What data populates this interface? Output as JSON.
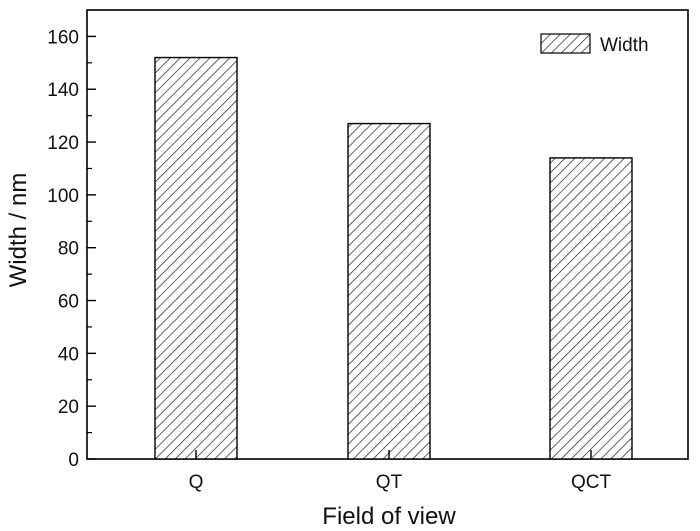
{
  "chart_data": {
    "type": "bar",
    "categories": [
      "Q",
      "QT",
      "QCT"
    ],
    "series": [
      {
        "name": "Width",
        "values": [
          152,
          127,
          114
        ]
      }
    ],
    "xlabel": "Field of view",
    "ylabel": "Width / nm",
    "ylim": [
      0,
      170
    ],
    "yticks": [
      0,
      20,
      40,
      60,
      80,
      100,
      120,
      140,
      160
    ],
    "bar_fill": "hatched",
    "grid": false,
    "legend": {
      "position": "top-right",
      "entries": [
        "Width"
      ]
    }
  }
}
